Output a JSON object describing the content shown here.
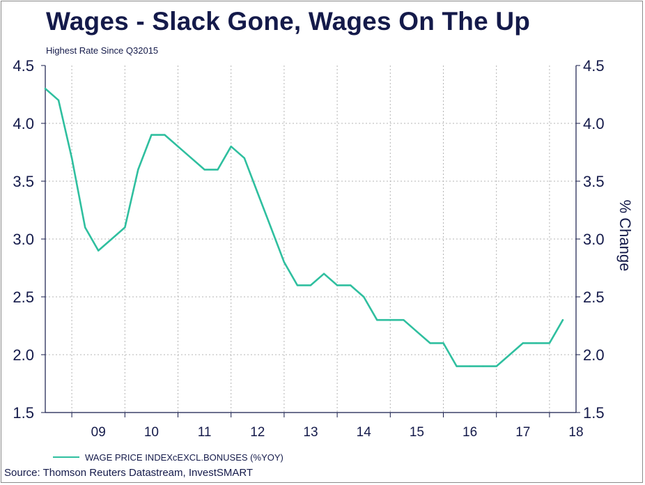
{
  "title": "Wages - Slack Gone, Wages On The Up",
  "subtitle": "Highest Rate Since Q32015",
  "source": "Source: Thomson Reuters Datastream, InvestSMART",
  "colors": {
    "line": "#2fbf9f",
    "text": "#141a4a",
    "grid": "#b4b4b4"
  },
  "chart_data": {
    "type": "line",
    "title": "Wages - Slack Gone, Wages On The Up",
    "subtitle": "Highest Rate Since Q32015",
    "ylabel_right": "% Change",
    "ylim": [
      1.5,
      4.5
    ],
    "yticks": [
      "1.5",
      "2.0",
      "2.5",
      "3.0",
      "3.5",
      "4.0",
      "4.5"
    ],
    "xticks": [
      "09",
      "10",
      "11",
      "12",
      "13",
      "14",
      "15",
      "16",
      "17",
      "18"
    ],
    "grid": true,
    "legend_position": "bottom-left",
    "series": [
      {
        "name": "WAGE PRICE INDEXcEXCL.BONUSES (%YOY)",
        "color": "#2fbf9f",
        "x": [
          "2008-Q3",
          "2008-Q4",
          "2009-Q1",
          "2009-Q2",
          "2009-Q3",
          "2009-Q4",
          "2010-Q1",
          "2010-Q2",
          "2010-Q3",
          "2010-Q4",
          "2011-Q1",
          "2011-Q2",
          "2011-Q3",
          "2011-Q4",
          "2012-Q1",
          "2012-Q2",
          "2012-Q3",
          "2012-Q4",
          "2013-Q1",
          "2013-Q2",
          "2013-Q3",
          "2013-Q4",
          "2014-Q1",
          "2014-Q2",
          "2014-Q3",
          "2014-Q4",
          "2015-Q1",
          "2015-Q2",
          "2015-Q3",
          "2015-Q4",
          "2016-Q1",
          "2016-Q2",
          "2016-Q3",
          "2016-Q4",
          "2017-Q1",
          "2017-Q2",
          "2017-Q3",
          "2017-Q4",
          "2018-Q1",
          "2018-Q2"
        ],
        "values": [
          4.3,
          4.2,
          3.7,
          3.1,
          2.9,
          3.0,
          3.1,
          3.6,
          3.9,
          3.9,
          3.8,
          3.7,
          3.6,
          3.6,
          3.8,
          3.7,
          3.4,
          3.1,
          2.8,
          2.6,
          2.6,
          2.7,
          2.6,
          2.6,
          2.5,
          2.3,
          2.3,
          2.3,
          2.2,
          2.1,
          2.1,
          1.9,
          1.9,
          1.9,
          1.9,
          2.0,
          2.1,
          2.1,
          2.1,
          2.3
        ]
      }
    ]
  }
}
